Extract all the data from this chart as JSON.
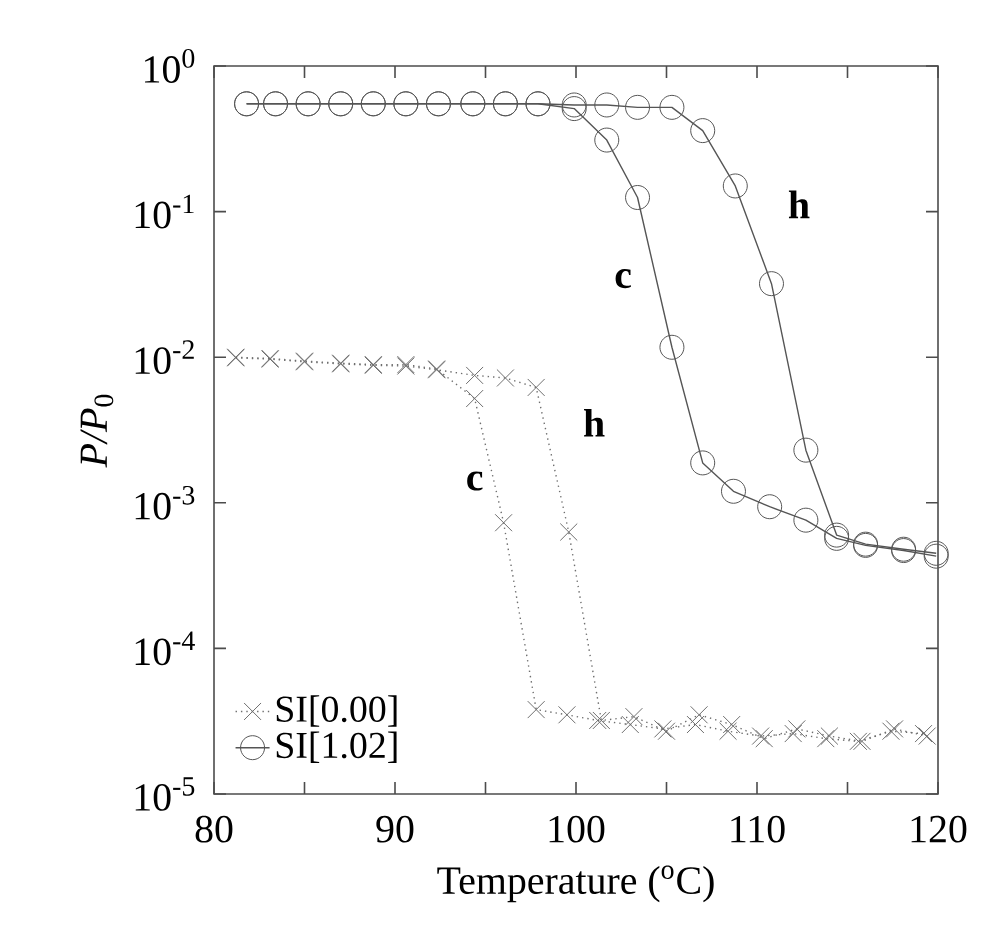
{
  "chart_data": {
    "type": "line",
    "xlabel": "Temperature ($^{o}$C)",
    "ylabel": "*P/P*$_{0}$",
    "log": "y",
    "legend": "bottom left",
    "grid": false,
    "xlim": [
      80,
      120
    ],
    "ylim": [
      1e-05,
      1
    ],
    "xticks": [
      80,
      {
        "value": 85,
        "label": null
      },
      90,
      {
        "value": 95,
        "label": null
      },
      100,
      {
        "value": 105,
        "label": null
      },
      110,
      {
        "value": 115,
        "label": null
      },
      120
    ],
    "yticks": [
      {
        "value": 1e-05,
        "label": "10$^{-5}$"
      },
      {
        "value": 0.0001,
        "label": "10$^{-4}$"
      },
      {
        "value": 0.001,
        "label": "10$^{-3}$"
      },
      {
        "value": 0.01,
        "label": "10$^{-2}$"
      },
      {
        "value": 0.1,
        "label": "10$^{-1}$"
      },
      {
        "value": 1,
        "label": "10$^{0}$"
      }
    ],
    "series": [
      {
        "name": "SI[0.00]",
        "color": "#6e6e6e",
        "marker": "cross",
        "line_style": "dotted",
        "x": [
          81.2,
          83.1,
          85.0,
          87.0,
          88.8,
          90.6,
          92.3,
          94.4,
          96.0,
          97.8,
          99.5,
          101.2,
          103.0,
          104.8,
          106.6,
          108.4,
          110.2,
          112.0,
          113.8,
          115.6,
          117.4,
          119.2
        ],
        "values": [
          0.01,
          0.0098,
          0.0094,
          0.0091,
          0.0089,
          0.0089,
          0.0083,
          0.0052,
          0.00073,
          3.8e-05,
          3.5e-05,
          3.2e-05,
          3e-05,
          2.8e-05,
          3e-05,
          2.7e-05,
          2.5e-05,
          2.6e-05,
          2.4e-05,
          2.3e-05,
          2.7e-05,
          2.6e-05
        ]
      },
      {
        "color": "#6e6e6e",
        "marker": "cross",
        "line_style": "dotted",
        "x": [
          81.2,
          83.1,
          85.0,
          87.0,
          88.8,
          90.6,
          92.3,
          94.4,
          96.1,
          97.8,
          99.6,
          101.4,
          103.2,
          105.0,
          106.8,
          108.6,
          110.4,
          112.2,
          114.0,
          115.8,
          117.6,
          119.4
        ],
        "values": [
          0.0099,
          0.0097,
          0.0093,
          0.009,
          0.0088,
          0.0087,
          0.0082,
          0.0075,
          0.0072,
          0.0062,
          0.00063,
          3.2e-05,
          3.4e-05,
          2.7e-05,
          3.5e-05,
          3e-05,
          2.4e-05,
          2.8e-05,
          2.5e-05,
          2.3e-05,
          2.8e-05,
          2.5e-05
        ]
      },
      {
        "name": "SI[1.02]",
        "color": "#555555",
        "marker": "circle",
        "line_style": "solid",
        "x": [
          81.8,
          83.4,
          85.2,
          87.0,
          88.8,
          90.6,
          92.4,
          94.3,
          96.1,
          97.9,
          99.9,
          101.7,
          103.4,
          105.3,
          107.0,
          108.7,
          110.7,
          112.7,
          114.4,
          116.0,
          118.1,
          119.9
        ],
        "values": [
          0.55,
          0.55,
          0.55,
          0.55,
          0.55,
          0.55,
          0.55,
          0.55,
          0.55,
          0.55,
          0.51,
          0.31,
          0.125,
          0.0117,
          0.00188,
          0.0012,
          0.00094,
          0.00076,
          0.00057,
          0.00051,
          0.00047,
          0.00043
        ]
      },
      {
        "color": "#555555",
        "marker": "circle",
        "line_style": "solid",
        "x": [
          81.8,
          83.4,
          85.2,
          87.0,
          88.8,
          90.6,
          92.4,
          94.3,
          96.1,
          97.9,
          99.9,
          101.7,
          103.4,
          105.3,
          107.0,
          108.8,
          110.8,
          112.7,
          114.4,
          116.0,
          118.1,
          119.9
        ],
        "values": [
          0.55,
          0.55,
          0.55,
          0.55,
          0.55,
          0.55,
          0.55,
          0.55,
          0.55,
          0.55,
          0.54,
          0.54,
          0.52,
          0.52,
          0.36,
          0.15,
          0.032,
          0.0023,
          0.0006,
          0.00052,
          0.00048,
          0.00045
        ]
      }
    ],
    "annotations": [
      "c",
      "h",
      "c",
      "h"
    ]
  }
}
